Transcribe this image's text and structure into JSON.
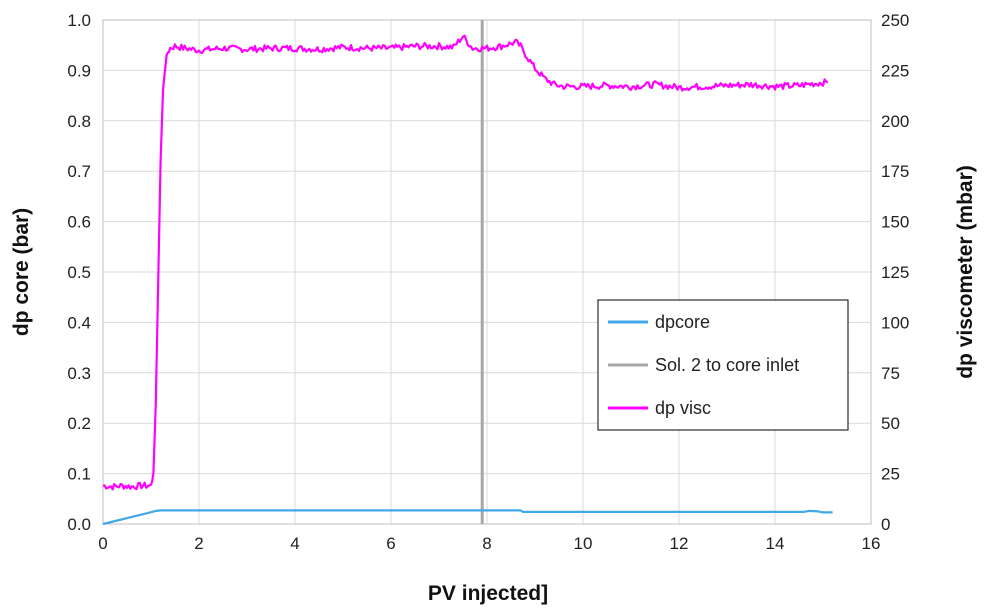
{
  "chart_data": {
    "type": "line",
    "title": "",
    "xlabel": "PV injected]",
    "ylabel": "dp core (bar)",
    "y2label": "dp viscometer (mbar)",
    "xlim": [
      0,
      16
    ],
    "ylim": [
      0,
      1.0
    ],
    "y2lim": [
      0,
      250
    ],
    "xticks": [
      "0",
      "2",
      "4",
      "6",
      "8",
      "10",
      "12",
      "14",
      "16"
    ],
    "yticks": [
      "0.0",
      "0.1",
      "0.2",
      "0.3",
      "0.4",
      "0.5",
      "0.6",
      "0.7",
      "0.8",
      "0.9",
      "1.0"
    ],
    "y2ticks": [
      "0",
      "25",
      "50",
      "75",
      "100",
      "125",
      "150",
      "175",
      "200",
      "225",
      "250"
    ],
    "grid": true,
    "legend_position": "right",
    "series": [
      {
        "name": "dpcore",
        "axis": "left",
        "color": "#41a9e8",
        "x": [
          0,
          0.3,
          0.6,
          0.9,
          1.1,
          1.2,
          2,
          4,
          6,
          8,
          8.7,
          8.75,
          9,
          10,
          12,
          14,
          14.6,
          14.7,
          14.9,
          15,
          15.2
        ],
        "y": [
          0.0,
          0.007,
          0.014,
          0.021,
          0.026,
          0.027,
          0.027,
          0.027,
          0.027,
          0.027,
          0.027,
          0.024,
          0.024,
          0.024,
          0.024,
          0.024,
          0.024,
          0.026,
          0.025,
          0.023,
          0.023
        ]
      },
      {
        "name": "Sol. 2 to core inlet",
        "axis": "left",
        "color": "#a6a6a6",
        "x": [
          7.9,
          7.9
        ],
        "y": [
          0,
          1.0
        ]
      },
      {
        "name": "dp visc",
        "axis": "right",
        "color": "#ff00ff",
        "x": [
          0,
          0.2,
          0.4,
          0.6,
          0.8,
          1.0,
          1.05,
          1.1,
          1.15,
          1.2,
          1.25,
          1.3,
          1.35,
          1.4,
          1.5,
          1.7,
          2,
          2.5,
          3,
          3.5,
          4,
          4.5,
          5,
          5.5,
          6,
          6.5,
          7,
          7.3,
          7.5,
          7.7,
          8,
          8.3,
          8.6,
          8.7,
          8.8,
          9.0,
          9.2,
          9.4,
          9.6,
          10,
          10.5,
          11,
          11.5,
          12,
          12.5,
          13,
          13.5,
          14,
          14.5,
          15,
          15.1
        ],
        "y": [
          19,
          18.5,
          19,
          18.5,
          19,
          19,
          25,
          60,
          120,
          180,
          215,
          228,
          234,
          236,
          237,
          236,
          235,
          236,
          235.5,
          236,
          236,
          235.5,
          236.5,
          236,
          236,
          237,
          237,
          236.5,
          242,
          236,
          236,
          237,
          239,
          237,
          233,
          226,
          221,
          218,
          217,
          217,
          217.5,
          217,
          218,
          216.5,
          217,
          217.5,
          218,
          217,
          217.5,
          219,
          219
        ]
      }
    ]
  }
}
